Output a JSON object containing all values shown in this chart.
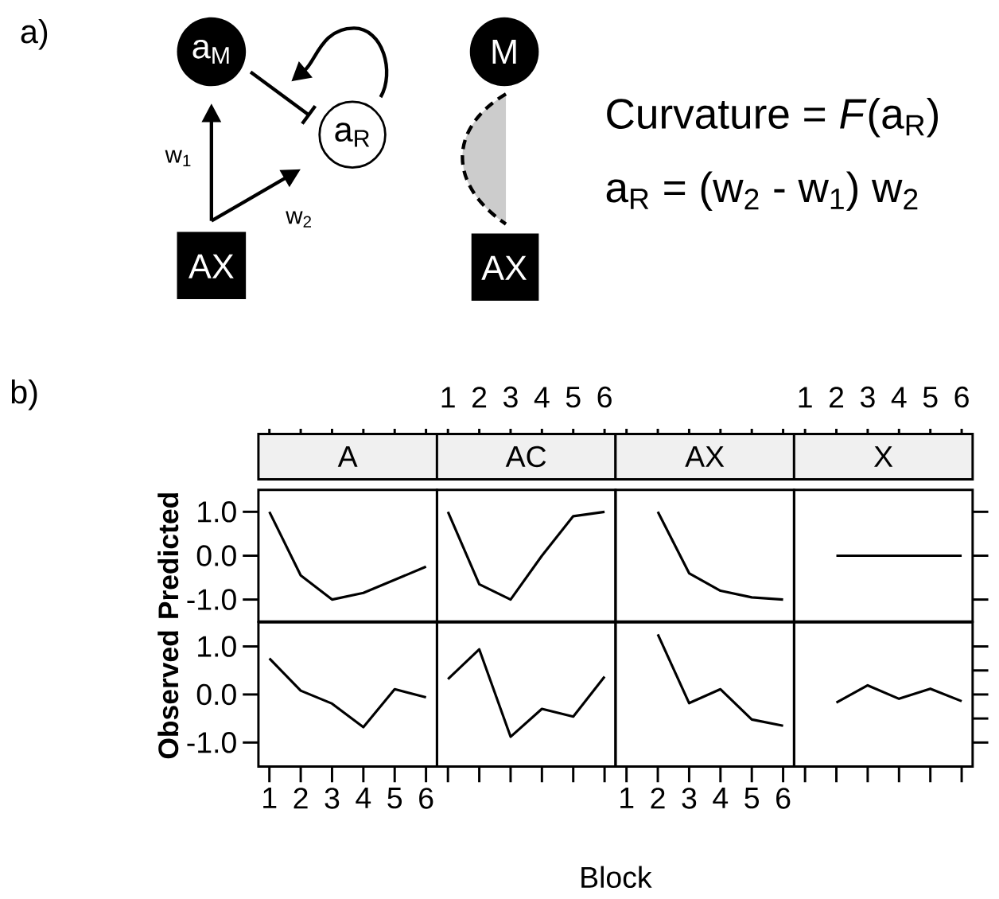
{
  "chart_data": [
    {
      "type": "other",
      "annotations": [
        "a)",
        "a$_{M}$",
        "a$_{R}$",
        "w$_{1}$",
        "w$_{2}$",
        "AX",
        "M",
        "AX",
        "Curvature = *F*(a$_{R}$)",
        "a$_{R}$ = (w$_{2}$ - w$_{1}$) w$_{2}$"
      ]
    },
    {
      "type": "line",
      "title": "A",
      "ylabel": "Predicted",
      "annotations": [
        "b)"
      ],
      "x": [
        1,
        2,
        3,
        4,
        5,
        6
      ],
      "values": [
        1.0,
        -0.45,
        -1.0,
        -0.85,
        -0.55,
        -0.25
      ],
      "color": "#000000",
      "xlim": [
        0.65,
        6.35
      ],
      "ylim": [
        -1.5,
        1.5
      ],
      "xticks": [
        1,
        2,
        3,
        4,
        5,
        6
      ],
      "yticks": [
        {
          "value": 1,
          "label": "1.0"
        },
        {
          "value": 0,
          "label": "0.0"
        },
        {
          "value": -1,
          "label": "-1.0"
        }
      ],
      "tick_labels": "y"
    },
    {
      "type": "line",
      "title": "AC",
      "x": [
        1,
        2,
        3,
        4,
        5,
        6
      ],
      "values": [
        1.0,
        -0.65,
        -1.0,
        0.0,
        0.9,
        1.0
      ],
      "color": "#000000",
      "xlim": [
        0.65,
        6.35
      ],
      "ylim": [
        -1.5,
        1.5
      ],
      "xticks": [
        1,
        2,
        3,
        4,
        5,
        6
      ],
      "tick_labels": "x"
    },
    {
      "type": "line",
      "title": "AX",
      "x": [
        2,
        3,
        4,
        5,
        6
      ],
      "values": [
        1.0,
        -0.4,
        -0.8,
        -0.95,
        -1.0
      ],
      "color": "#000000",
      "xlim": [
        0.65,
        6.35
      ],
      "ylim": [
        -1.5,
        1.5
      ],
      "xticks": [
        1,
        2,
        3,
        4,
        5,
        6
      ],
      "tick_labels": false
    },
    {
      "type": "line",
      "title": "X",
      "x": [
        2,
        3,
        4,
        5,
        6
      ],
      "values": [
        0.0,
        0.0,
        0.0,
        0.0,
        0.0
      ],
      "color": "#000000",
      "xlim": [
        0.65,
        6.35
      ],
      "ylim": [
        -1.5,
        1.5
      ],
      "xticks": [
        1,
        2,
        3,
        4,
        5,
        6
      ],
      "yticks": [
        {
          "value": 1,
          "label": null
        },
        {
          "value": 0,
          "label": null
        },
        {
          "value": -1,
          "label": null
        }
      ],
      "tick_labels": "x"
    },
    {
      "type": "line",
      "ylabel": "Observed",
      "x": [
        1,
        2,
        3,
        4,
        5,
        6
      ],
      "values": [
        0.75,
        0.08,
        -0.19,
        -0.68,
        0.11,
        -0.06
      ],
      "color": "#000000",
      "xlim": [
        0.65,
        6.35
      ],
      "ylim": [
        -1.5,
        1.5
      ],
      "xticks": [
        1,
        2,
        3,
        4,
        5,
        6
      ],
      "yticks": [
        {
          "value": 1,
          "label": "1.0"
        },
        {
          "value": 0,
          "label": "0.0"
        },
        {
          "value": -1,
          "label": "-1.0"
        }
      ]
    },
    {
      "type": "line",
      "xlabel": "Block",
      "x": [
        1,
        2,
        3,
        4,
        5,
        6
      ],
      "values": [
        0.32,
        0.94,
        -0.88,
        -0.3,
        -0.46,
        0.37
      ],
      "color": "#000000",
      "xlim": [
        0.65,
        6.35
      ],
      "ylim": [
        -1.5,
        1.5
      ],
      "xticks": [
        1,
        2,
        3,
        4,
        5,
        6
      ],
      "tick_labels": false
    },
    {
      "type": "line",
      "x": [
        2,
        3,
        4,
        5,
        6
      ],
      "values": [
        1.25,
        -0.18,
        0.11,
        -0.52,
        -0.65
      ],
      "color": "#000000",
      "xlim": [
        0.65,
        6.35
      ],
      "ylim": [
        -1.5,
        1.5
      ],
      "xticks": [
        1,
        2,
        3,
        4,
        5,
        6
      ],
      "tick_labels": "x"
    },
    {
      "type": "line",
      "x": [
        2,
        3,
        4,
        5,
        6
      ],
      "values": [
        -0.17,
        0.19,
        -0.09,
        0.12,
        -0.14
      ],
      "color": "#000000",
      "xlim": [
        0.65,
        6.35
      ],
      "ylim": [
        -1.5,
        1.5
      ],
      "xticks": [
        1,
        2,
        3,
        4,
        5,
        6
      ],
      "yticks": [
        {
          "value": 1,
          "label": null
        },
        {
          "value": 0.5,
          "label": null
        },
        {
          "value": 0,
          "label": null
        },
        {
          "value": -0.5,
          "label": null
        },
        {
          "value": -1,
          "label": null
        }
      ],
      "tick_labels": false
    }
  ]
}
